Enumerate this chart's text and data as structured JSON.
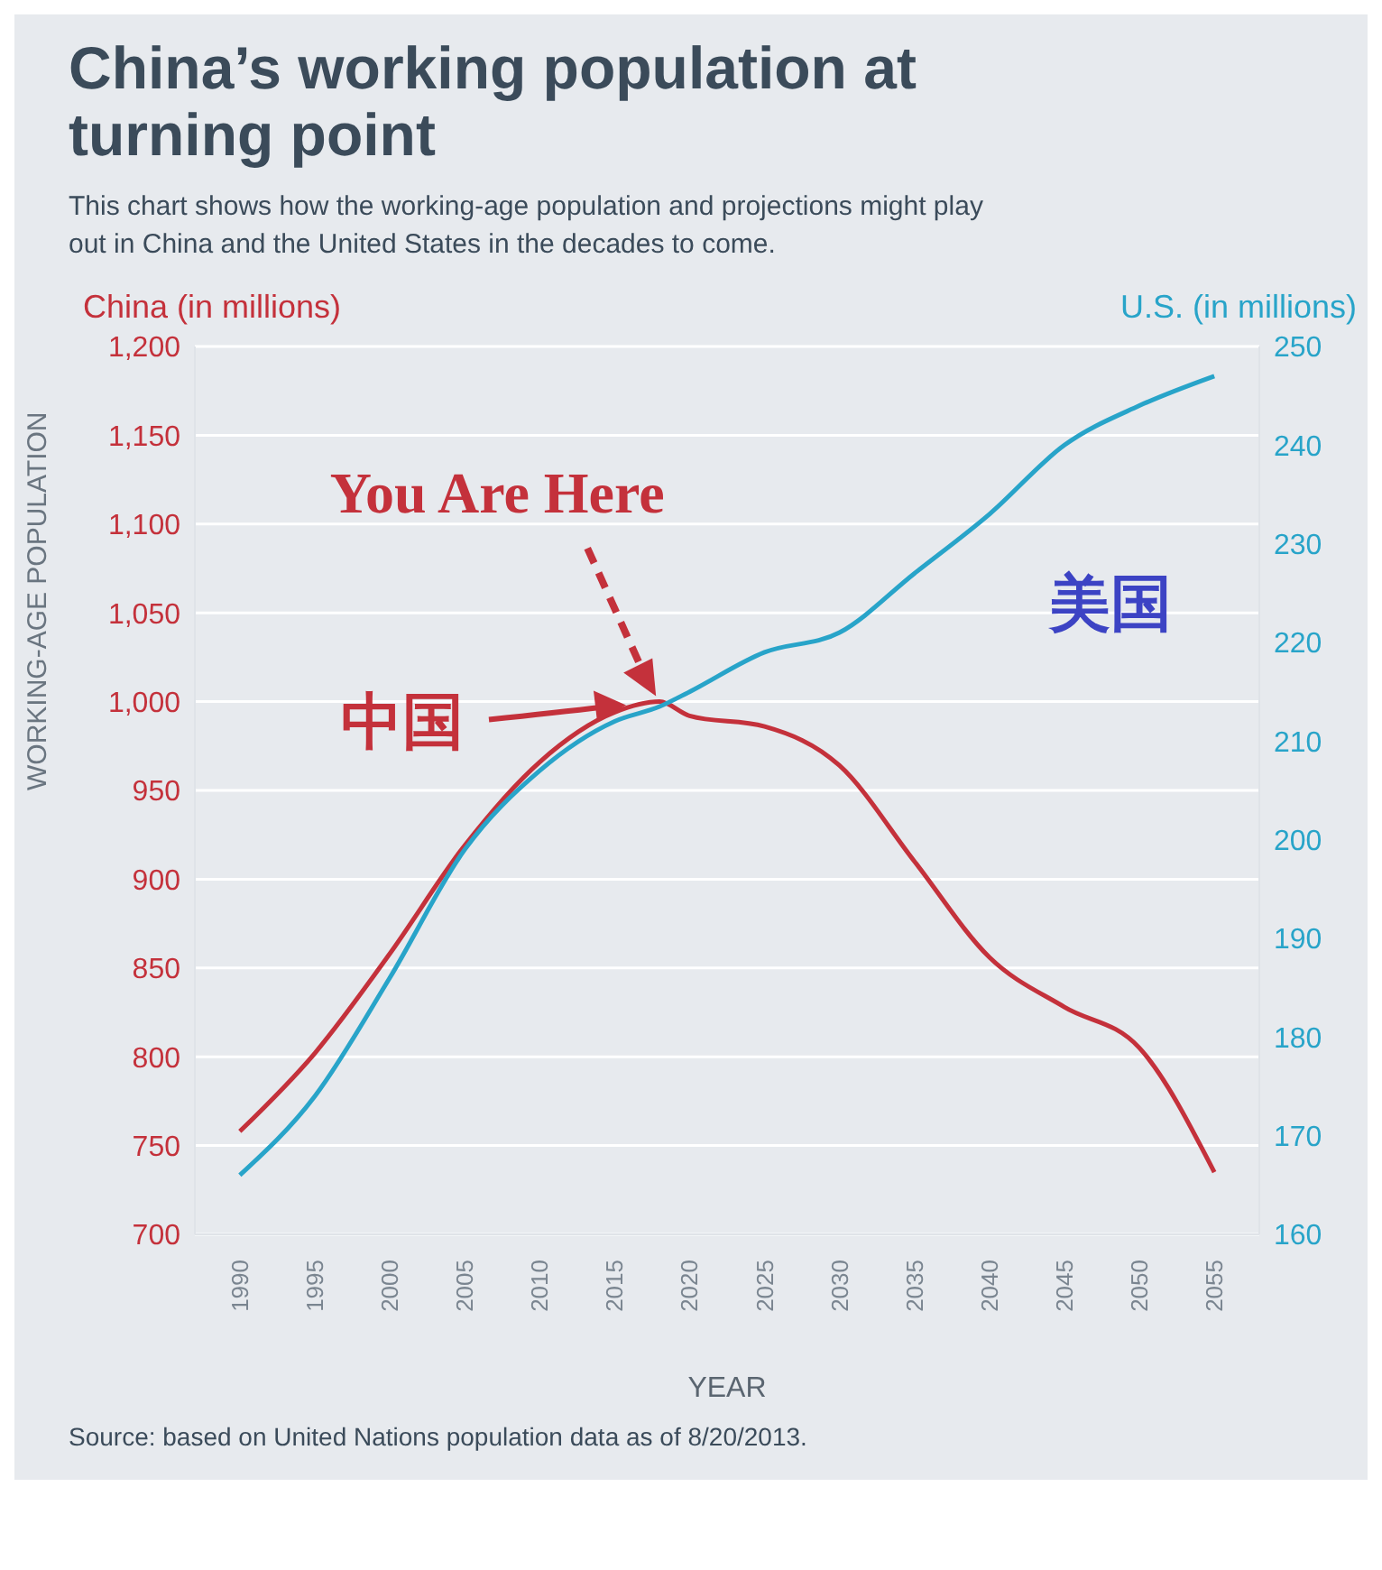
{
  "chart_data": {
    "type": "line",
    "title": "China’s working population at turning point",
    "subtitle": "This chart shows how the working-age population and projections might play out in China and the United States in the decades to come.",
    "xlabel": "YEAR",
    "ylabel": "WORKING-AGE POPULATION",
    "y2label": "U.S. (in millions)",
    "annotations": [
      "China (in millions)",
      "中国",
      "You Are Here",
      "Source: based on United Nations population data as of 8/20/2013."
    ],
    "x": [
      1990,
      1995,
      2000,
      2005,
      2010,
      2015,
      2018,
      2020,
      2025,
      2030,
      2035,
      2040,
      2045,
      2050,
      2055
    ],
    "series": [
      {
        "color": "#c4313b",
        "values": [
          758,
          802,
          858,
          919,
          966,
          994,
          1000,
          992,
          986,
          964,
          910,
          856,
          828,
          805,
          735
        ]
      },
      {
        "name": "美国",
        "color": "#28a4c9",
        "axis": "y2",
        "values": [
          166,
          174,
          186,
          199,
          207,
          212,
          213.5,
          215,
          219,
          221,
          227,
          233,
          240,
          244,
          247
        ]
      }
    ],
    "xlim": [
      1987,
      2058
    ],
    "xticks": [
      1990,
      1995,
      2000,
      2005,
      2010,
      2015,
      2020,
      2025,
      2030,
      2035,
      2040,
      2045,
      2050,
      2055
    ],
    "ylim": [
      700,
      1200
    ],
    "yticks": [
      700,
      750,
      800,
      850,
      900,
      950,
      {
        "value": 1000,
        "label": "1,000"
      },
      {
        "value": 1050,
        "label": "1,050"
      },
      {
        "value": 1100,
        "label": "1,100"
      },
      {
        "value": 1150,
        "label": "1,150"
      },
      {
        "value": 1200,
        "label": "1,200"
      }
    ],
    "y2lim": [
      160,
      250
    ],
    "y2ticks": [
      160,
      170,
      180,
      190,
      200,
      210,
      220,
      230,
      240,
      250
    ],
    "grid": "y",
    "legend": false,
    "marker": "none",
    "line_style": "solid"
  }
}
